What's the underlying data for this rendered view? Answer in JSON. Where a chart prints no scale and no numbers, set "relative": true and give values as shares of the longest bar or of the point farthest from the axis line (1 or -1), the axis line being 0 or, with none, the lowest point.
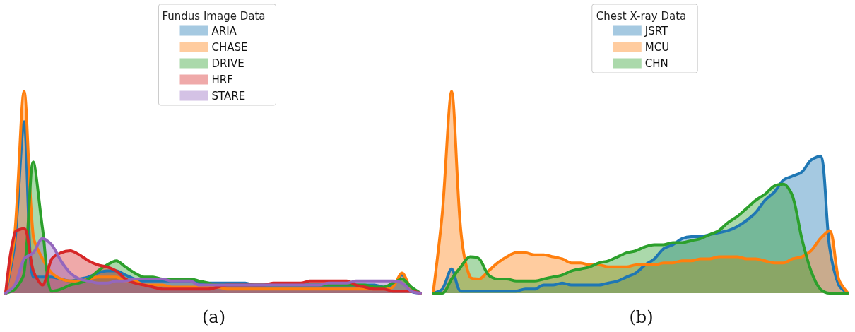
{
  "chart_data": [
    {
      "type": "area",
      "relative": true,
      "legend_title": "Fundus Image Data",
      "xlabel": "(a)",
      "legend": "top",
      "grid": false,
      "marker": "none",
      "categories": [
        null,
        null,
        null,
        null,
        null,
        null,
        null,
        null,
        null,
        null,
        null,
        null,
        null,
        null,
        null,
        null,
        null,
        null,
        null,
        null,
        null,
        null,
        null,
        null,
        null,
        null,
        null,
        null,
        null,
        null,
        null,
        null,
        null,
        null,
        null,
        null,
        null,
        null,
        null,
        null,
        null,
        null,
        null,
        null,
        null,
        null
      ],
      "series": [
        {
          "name": "ARIA",
          "color": "#1f77b4",
          "values": [
            0,
            0.25,
            0.85,
            0.08,
            0.08,
            0.08,
            0.07,
            0.06,
            0.07,
            0.08,
            0.1,
            0.11,
            0.11,
            0.09,
            0.07,
            0.06,
            0.06,
            0.06,
            0.06,
            0.06,
            0.06,
            0.05,
            0.05,
            0.05,
            0.05,
            0.05,
            0.05,
            0.04,
            0.04,
            0.04,
            0.04,
            0.04,
            0.04,
            0.04,
            0.04,
            0.04,
            0.04,
            0.04,
            0.04,
            0.04,
            0.04,
            0.03,
            0.04,
            0.09,
            0.01,
            0
          ]
        },
        {
          "name": "CHASE",
          "color": "#ff7f0e",
          "values": [
            0,
            0.3,
            1.0,
            0.28,
            0.17,
            0.1,
            0.07,
            0.06,
            0.06,
            0.07,
            0.08,
            0.08,
            0.08,
            0.06,
            0.06,
            0.04,
            0.04,
            0.04,
            0.03,
            0.03,
            0.03,
            0.03,
            0.03,
            0.03,
            0.02,
            0.02,
            0.02,
            0.02,
            0.02,
            0.02,
            0.02,
            0.02,
            0.02,
            0.02,
            0.02,
            0.02,
            0.02,
            0.02,
            0.02,
            0.02,
            0.02,
            0.02,
            0.03,
            0.1,
            0.02,
            0
          ]
        },
        {
          "name": "DRIVE",
          "color": "#2ca02c",
          "values": [
            0,
            0.02,
            0.1,
            0.65,
            0.32,
            0.01,
            0.02,
            0.04,
            0.05,
            0.07,
            0.11,
            0.14,
            0.16,
            0.13,
            0.1,
            0.08,
            0.08,
            0.07,
            0.07,
            0.07,
            0.07,
            0.06,
            0.05,
            0.04,
            0.04,
            0.04,
            0.04,
            0.04,
            0.04,
            0.04,
            0.04,
            0.04,
            0.04,
            0.04,
            0.04,
            0.04,
            0.04,
            0.04,
            0.04,
            0.04,
            0.03,
            0.03,
            0.05,
            0.07,
            0.03,
            0
          ]
        },
        {
          "name": "HRF",
          "color": "#d62728",
          "values": [
            0,
            0.3,
            0.32,
            0.11,
            0.04,
            0.17,
            0.2,
            0.21,
            0.19,
            0.16,
            0.14,
            0.13,
            0.11,
            0.07,
            0.05,
            0.04,
            0.03,
            0.02,
            0.02,
            0.02,
            0.02,
            0.02,
            0.02,
            0.03,
            0.04,
            0.04,
            0.04,
            0.04,
            0.04,
            0.05,
            0.05,
            0.05,
            0.05,
            0.06,
            0.06,
            0.06,
            0.06,
            0.06,
            0.04,
            0.03,
            0.02,
            0.02,
            0.01,
            0.01,
            0.01,
            0
          ]
        },
        {
          "name": "STARE",
          "color": "#9467bd",
          "values": [
            0,
            0.04,
            0.17,
            0.2,
            0.27,
            0.24,
            0.16,
            0.1,
            0.07,
            0.06,
            0.05,
            0.05,
            0.06,
            0.06,
            0.07,
            0.07,
            0.07,
            0.07,
            0.06,
            0.06,
            0.06,
            0.04,
            0.04,
            0.04,
            0.04,
            0.04,
            0.04,
            0.04,
            0.04,
            0.04,
            0.04,
            0.04,
            0.04,
            0.04,
            0.04,
            0.05,
            0.05,
            0.05,
            0.06,
            0.06,
            0.06,
            0.06,
            0.06,
            0.05,
            0.01,
            0
          ]
        }
      ]
    },
    {
      "type": "area",
      "relative": true,
      "legend_title": "Chest X-ray Data",
      "xlabel": "(b)",
      "legend": "top",
      "grid": false,
      "marker": "none",
      "categories": [
        null,
        null,
        null,
        null,
        null,
        null,
        null,
        null,
        null,
        null,
        null,
        null,
        null,
        null,
        null,
        null,
        null,
        null,
        null,
        null,
        null,
        null,
        null,
        null,
        null,
        null,
        null,
        null,
        null,
        null,
        null,
        null,
        null,
        null,
        null,
        null,
        null,
        null,
        null,
        null,
        null,
        null,
        null,
        null,
        null,
        null
      ],
      "series": [
        {
          "name": "JSRT",
          "color": "#1f77b4",
          "values": [
            0,
            0.02,
            0.12,
            0.01,
            0.01,
            0.01,
            0.01,
            0.01,
            0.01,
            0.01,
            0.02,
            0.02,
            0.04,
            0.04,
            0.05,
            0.04,
            0.04,
            0.04,
            0.04,
            0.05,
            0.06,
            0.08,
            0.1,
            0.14,
            0.17,
            0.22,
            0.24,
            0.27,
            0.28,
            0.28,
            0.29,
            0.3,
            0.31,
            0.33,
            0.36,
            0.4,
            0.46,
            0.5,
            0.56,
            0.58,
            0.6,
            0.66,
            0.68,
            0.23,
            0.04,
            0
          ]
        },
        {
          "name": "MCU",
          "color": "#ff7f0e",
          "values": [
            0,
            0.4,
            1.0,
            0.31,
            0.08,
            0.07,
            0.11,
            0.15,
            0.18,
            0.2,
            0.2,
            0.19,
            0.19,
            0.18,
            0.17,
            0.15,
            0.15,
            0.14,
            0.14,
            0.13,
            0.13,
            0.13,
            0.14,
            0.14,
            0.14,
            0.15,
            0.15,
            0.16,
            0.16,
            0.17,
            0.17,
            0.18,
            0.18,
            0.18,
            0.17,
            0.17,
            0.16,
            0.15,
            0.15,
            0.17,
            0.18,
            0.21,
            0.27,
            0.31,
            0.07,
            0
          ]
        },
        {
          "name": "CHN",
          "color": "#2ca02c",
          "values": [
            0,
            0,
            0.07,
            0.13,
            0.18,
            0.17,
            0.09,
            0.07,
            0.07,
            0.06,
            0.06,
            0.06,
            0.07,
            0.08,
            0.09,
            0.11,
            0.12,
            0.13,
            0.15,
            0.16,
            0.18,
            0.2,
            0.21,
            0.23,
            0.24,
            0.24,
            0.25,
            0.25,
            0.26,
            0.27,
            0.29,
            0.31,
            0.35,
            0.38,
            0.42,
            0.46,
            0.49,
            0.53,
            0.54,
            0.48,
            0.27,
            0.11,
            0.02,
            0,
            0,
            0
          ]
        }
      ]
    }
  ]
}
